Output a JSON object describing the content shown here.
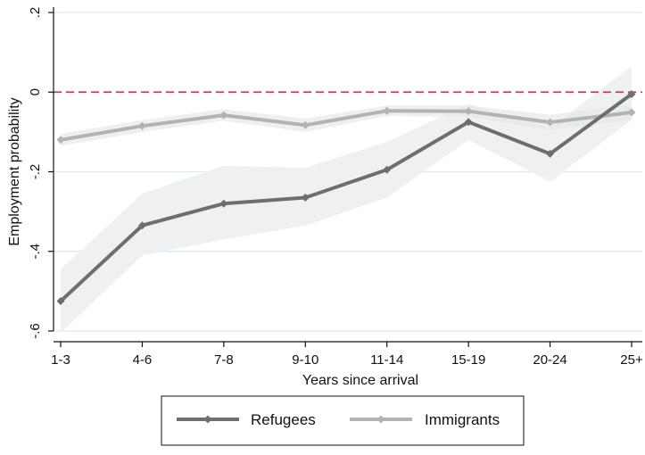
{
  "chart_data": {
    "type": "line",
    "categories": [
      "1-3",
      "4-6",
      "7-8",
      "9-10",
      "11-14",
      "15-19",
      "20-24",
      "25+"
    ],
    "xlabel": "Years since arrival",
    "ylabel": "Employment probability",
    "ylim": [
      -0.6,
      0.2
    ],
    "yticks": [
      0.2,
      0,
      -0.2,
      -0.4,
      -0.6
    ],
    "ytick_labels": [
      ".2",
      "0",
      "-.2",
      "-.4",
      "-.6"
    ],
    "reference_line": {
      "y": 0,
      "color": "#d8334a",
      "style": "dashed"
    },
    "grid": true,
    "legend_position": "bottom",
    "series": [
      {
        "name": "Refugees",
        "color": "#6e6e6e",
        "values": [
          -0.525,
          -0.335,
          -0.28,
          -0.265,
          -0.195,
          -0.075,
          -0.155,
          -0.005
        ],
        "ci_lower": [
          -0.605,
          -0.41,
          -0.37,
          -0.335,
          -0.265,
          -0.12,
          -0.225,
          -0.07
        ],
        "ci_upper": [
          -0.445,
          -0.255,
          -0.185,
          -0.19,
          -0.125,
          -0.03,
          -0.09,
          0.065
        ]
      },
      {
        "name": "Immigrants",
        "color": "#b3b3b3",
        "values": [
          -0.12,
          -0.085,
          -0.058,
          -0.083,
          -0.047,
          -0.048,
          -0.076,
          -0.051
        ],
        "ci_lower": [
          -0.135,
          -0.1,
          -0.072,
          -0.1,
          -0.06,
          -0.062,
          -0.095,
          -0.07
        ],
        "ci_upper": [
          -0.105,
          -0.07,
          -0.043,
          -0.066,
          -0.034,
          -0.034,
          -0.057,
          -0.032
        ]
      }
    ]
  }
}
